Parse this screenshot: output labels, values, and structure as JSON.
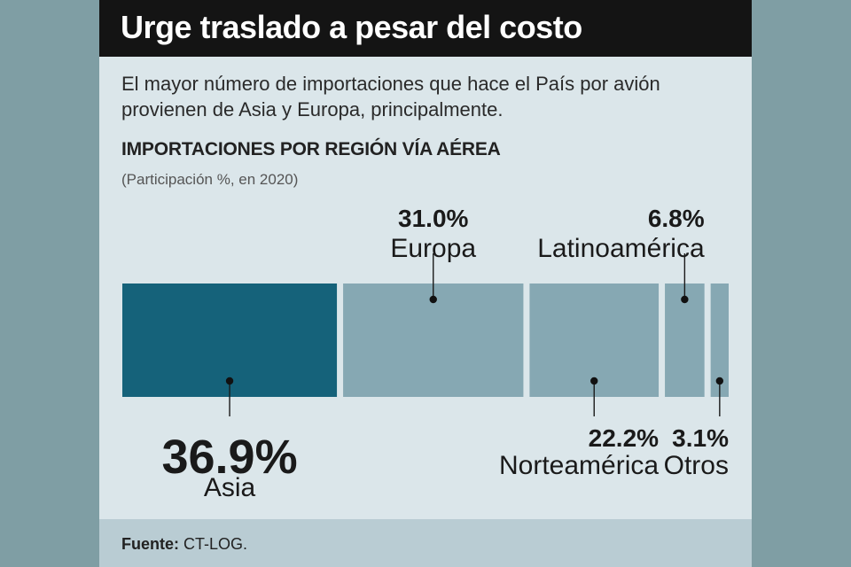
{
  "header": {
    "title": "Urge traslado a pesar del costo",
    "subtitle": "El mayor número de importaciones que hace el País por avión provienen de Asia y Europa, principalmente."
  },
  "chart_data": {
    "type": "bar",
    "orientation": "horizontal-stacked",
    "title": "IMPORTACIONES POR REGIÓN VÍA AÉREA",
    "subtitle": "(Participación %, en 2020)",
    "unit": "%",
    "categories": [
      "Asia",
      "Europa",
      "Norteamérica",
      "Latinoamérica",
      "Otros"
    ],
    "values": [
      36.9,
      31.0,
      22.2,
      6.8,
      3.1
    ],
    "value_labels": [
      "36.9%",
      "31.0%",
      "22.2%",
      "6.8%",
      "3.1%"
    ],
    "label_position": [
      "bottom",
      "top",
      "bottom",
      "top",
      "bottom"
    ],
    "colors": [
      "#15627a",
      "#86a8b3",
      "#86a8b3",
      "#86a8b3",
      "#86a8b3"
    ]
  },
  "footer": {
    "source_label": "Fuente:",
    "source_value": "CT-LOG."
  }
}
